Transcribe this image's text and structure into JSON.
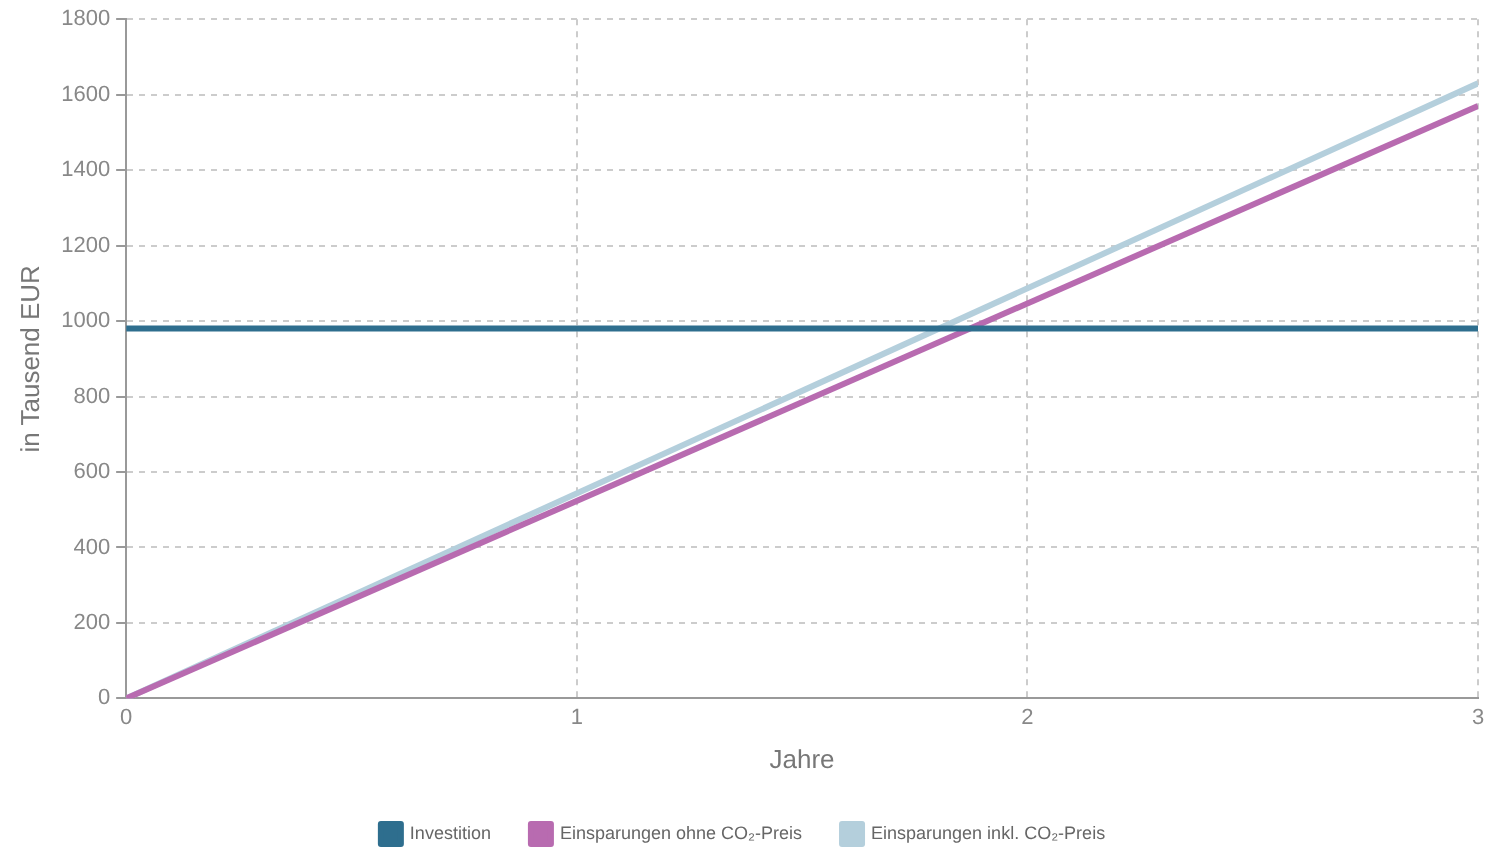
{
  "chart_data": {
    "type": "line",
    "xlabel": "Jahre",
    "ylabel": "in Tausend EUR",
    "x": [
      0,
      3
    ],
    "series": [
      {
        "name": "Investition",
        "color": "#2e6e8e",
        "values": [
          980,
          980
        ]
      },
      {
        "name": "Einsparungen ohne CO₂-Preis",
        "color": "#b86bb0",
        "values": [
          0,
          1570
        ]
      },
      {
        "name": "Einsparungen inkl. CO₂-Preis",
        "color": "#b4cfdc",
        "values": [
          0,
          1630
        ]
      }
    ],
    "xlim": [
      0,
      3
    ],
    "xticks": [
      0,
      1,
      2,
      3
    ],
    "ylim": [
      0,
      1800
    ],
    "yticks": [
      0,
      200,
      400,
      600,
      800,
      1000,
      1200,
      1400,
      1600,
      1800
    ],
    "grid": true,
    "legend": "bottom",
    "marker": "none",
    "line_style": "solid"
  }
}
